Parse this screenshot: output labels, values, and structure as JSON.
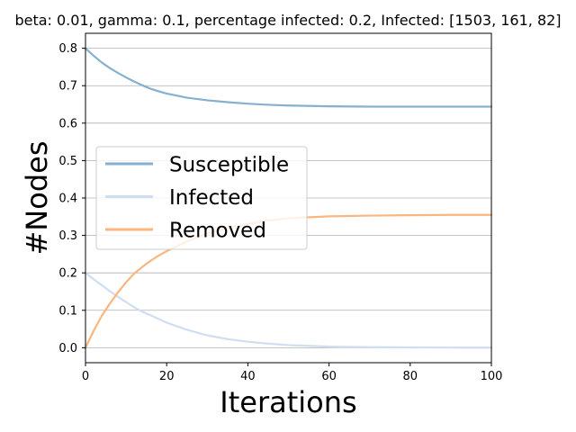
{
  "chart_data": {
    "type": "line",
    "title": "beta: 0.01, gamma: 0.1, percentage infected: 0.2, Infected: [1503, 161, 82]",
    "xlabel": "Iterations",
    "ylabel": "#Nodes",
    "xlim": [
      0,
      100
    ],
    "ylim": [
      -0.04,
      0.84
    ],
    "xticks": [
      0,
      20,
      40,
      60,
      80,
      100
    ],
    "yticks": [
      0.0,
      0.1,
      0.2,
      0.3,
      0.4,
      0.5,
      0.6,
      0.7,
      0.8
    ],
    "ytick_labels": [
      "0.0",
      "0.1",
      "0.2",
      "0.3",
      "0.4",
      "0.5",
      "0.6",
      "0.7",
      "0.8"
    ],
    "grid": "y",
    "legend_position": "center-left",
    "x": [
      0,
      2,
      4,
      6,
      8,
      10,
      12,
      14,
      16,
      18,
      20,
      25,
      30,
      35,
      40,
      45,
      50,
      60,
      70,
      80,
      90,
      100
    ],
    "series": [
      {
        "name": "Susceptible",
        "color": "#86b0d0",
        "values": [
          0.8,
          0.78,
          0.762,
          0.747,
          0.734,
          0.722,
          0.711,
          0.701,
          0.692,
          0.685,
          0.679,
          0.668,
          0.661,
          0.656,
          0.652,
          0.649,
          0.647,
          0.645,
          0.644,
          0.644,
          0.644,
          0.644
        ]
      },
      {
        "name": "Infected",
        "color": "#cfdef0",
        "values": [
          0.2,
          0.183,
          0.167,
          0.151,
          0.136,
          0.122,
          0.108,
          0.096,
          0.087,
          0.077,
          0.067,
          0.048,
          0.033,
          0.023,
          0.016,
          0.011,
          0.007,
          0.003,
          0.0015,
          0.0008,
          0.0004,
          0.0002
        ]
      },
      {
        "name": "Removed",
        "color": "#fbb57e",
        "values": [
          0.0,
          0.045,
          0.085,
          0.118,
          0.148,
          0.175,
          0.198,
          0.216,
          0.232,
          0.246,
          0.258,
          0.284,
          0.305,
          0.32,
          0.331,
          0.34,
          0.346,
          0.351,
          0.353,
          0.354,
          0.355,
          0.355
        ]
      }
    ]
  }
}
